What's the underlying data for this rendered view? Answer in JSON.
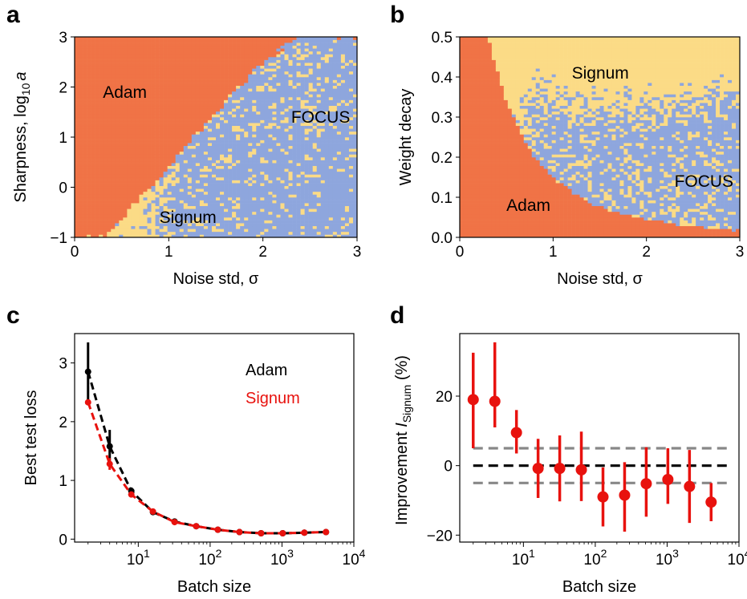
{
  "colors": {
    "adam": "#f07346",
    "signum": "#fbdb86",
    "focus": "#8ea6dd",
    "adam_line": "#000000",
    "signum_line": "#e8120e",
    "ref_line": "#888888"
  },
  "chart_data": [
    {
      "panel": "a",
      "type": "heatmap",
      "xlabel": "Noise std, σ",
      "ylabel_text": "Sharpness, log",
      "ylabel_sub": "10",
      "ylabel_var": "a",
      "xlim": [
        0,
        3
      ],
      "ylim": [
        -1,
        3
      ],
      "xticks": [
        "0",
        "1",
        "2",
        "3"
      ],
      "yticks": [
        "−1",
        "0",
        "1",
        "2",
        "3"
      ],
      "regions": [
        {
          "name": "Adam",
          "x": 0.3,
          "y": 1.9
        },
        {
          "name": "FOCUS",
          "x": 2.3,
          "y": 1.4
        },
        {
          "name": "Signum",
          "x": 0.9,
          "y": -0.6
        }
      ],
      "boundary_adam": [
        [
          0.3,
          -1
        ],
        [
          0.6,
          -0.4
        ],
        [
          1.0,
          0.4
        ],
        [
          1.3,
          1.05
        ],
        [
          1.6,
          1.7
        ],
        [
          1.9,
          2.3
        ],
        [
          2.25,
          2.85
        ],
        [
          2.4,
          3
        ]
      ],
      "boundary_focus": [
        [
          1.55,
          -1
        ],
        [
          1.45,
          -0.5
        ],
        [
          1.25,
          0.2
        ],
        [
          1.05,
          0.65
        ],
        [
          0.95,
          1.0
        ]
      ]
    },
    {
      "panel": "b",
      "type": "heatmap",
      "xlabel": "Noise std, σ",
      "ylabel": "Weight decay",
      "xlim": [
        0,
        3
      ],
      "ylim": [
        0,
        0.5
      ],
      "xticks": [
        "0",
        "1",
        "2",
        "3"
      ],
      "yticks": [
        "0.0",
        "0.1",
        "0.2",
        "0.3",
        "0.4",
        "0.5"
      ],
      "regions": [
        {
          "name": "Signum",
          "x": 1.2,
          "y": 0.41
        },
        {
          "name": "FOCUS",
          "x": 2.3,
          "y": 0.14
        },
        {
          "name": "Adam",
          "x": 0.5,
          "y": 0.08
        }
      ],
      "boundary_adam": [
        [
          0.3,
          0.5
        ],
        [
          0.4,
          0.42
        ],
        [
          0.5,
          0.34
        ],
        [
          0.65,
          0.26
        ],
        [
          0.8,
          0.2
        ],
        [
          1.0,
          0.15
        ],
        [
          1.3,
          0.1
        ],
        [
          1.6,
          0.068
        ],
        [
          2.0,
          0.045
        ],
        [
          2.5,
          0.028
        ],
        [
          3.0,
          0.018
        ]
      ],
      "boundary_focus": [
        [
          0.95,
          0.3
        ],
        [
          1.2,
          0.27
        ],
        [
          1.6,
          0.26
        ],
        [
          2.0,
          0.27
        ],
        [
          2.5,
          0.28
        ],
        [
          3.0,
          0.3
        ]
      ]
    },
    {
      "panel": "c",
      "type": "line",
      "xlabel": "Batch size",
      "ylabel": "Best test loss",
      "xscale": "log",
      "xlim": [
        1.3,
        10000
      ],
      "ylim": [
        -0.05,
        3.5
      ],
      "xticks": [
        {
          "base": "10",
          "exp": "1",
          "value": 10
        },
        {
          "base": "10",
          "exp": "2",
          "value": 100
        },
        {
          "base": "10",
          "exp": "3",
          "value": 1000
        },
        {
          "base": "10",
          "exp": "4",
          "value": 10000
        }
      ],
      "yticks": [
        "0",
        "1",
        "2",
        "3"
      ],
      "x": [
        2,
        4,
        8,
        16,
        32,
        64,
        128,
        256,
        512,
        1024,
        2048,
        4096
      ],
      "series": [
        {
          "name": "Adam",
          "values": [
            2.85,
            1.58,
            0.82,
            0.46,
            0.3,
            0.22,
            0.16,
            0.12,
            0.1,
            0.1,
            0.11,
            0.12
          ],
          "err": [
            0.5,
            0.28,
            0.06,
            0.03,
            0.02,
            0.01,
            0.01,
            0.01,
            0.01,
            0.01,
            0.01,
            0.01
          ]
        },
        {
          "name": "Signum",
          "values": [
            2.33,
            1.28,
            0.76,
            0.47,
            0.29,
            0.22,
            0.16,
            0.12,
            0.1,
            0.1,
            0.11,
            0.12
          ],
          "err": [
            0.02,
            0.1,
            0.04,
            0.02,
            0.01,
            0.01,
            0.01,
            0.01,
            0.01,
            0.01,
            0.01,
            0.01
          ]
        }
      ],
      "legend": [
        "Adam",
        "Signum"
      ]
    },
    {
      "panel": "d",
      "type": "scatter",
      "xlabel": "Batch size",
      "ylabel_text": "Improvement ",
      "ylabel_var": "I",
      "ylabel_sub": "Signum",
      "ylabel_end": " (%)",
      "xscale": "log",
      "xlim": [
        1.3,
        10000
      ],
      "ylim": [
        -22,
        38
      ],
      "xticks": [
        {
          "base": "10",
          "exp": "1",
          "value": 10
        },
        {
          "base": "10",
          "exp": "2",
          "value": 100
        },
        {
          "base": "10",
          "exp": "3",
          "value": 1000
        },
        {
          "base": "10",
          "exp": "4",
          "value": 10000
        }
      ],
      "yticks": [
        {
          "label": "−20",
          "value": -20
        },
        {
          "label": "0",
          "value": 0
        },
        {
          "label": "20",
          "value": 20
        }
      ],
      "x": [
        2,
        4,
        8,
        16,
        32,
        64,
        128,
        256,
        512,
        1024,
        2048,
        4096
      ],
      "values": [
        19,
        18.5,
        9.5,
        -0.8,
        -0.8,
        -1.2,
        -9,
        -8.5,
        -5.2,
        -4,
        -6,
        -10.5
      ],
      "err_low": [
        14,
        7.5,
        6,
        8.5,
        9.5,
        9,
        8.5,
        10.5,
        9.5,
        7,
        10.5,
        5.5
      ],
      "err_high": [
        13.5,
        17,
        6.5,
        8.5,
        9.5,
        11,
        8.5,
        9.5,
        10.5,
        9,
        10.5,
        5.5
      ],
      "ref_lines": [
        0,
        5,
        -5
      ]
    }
  ]
}
